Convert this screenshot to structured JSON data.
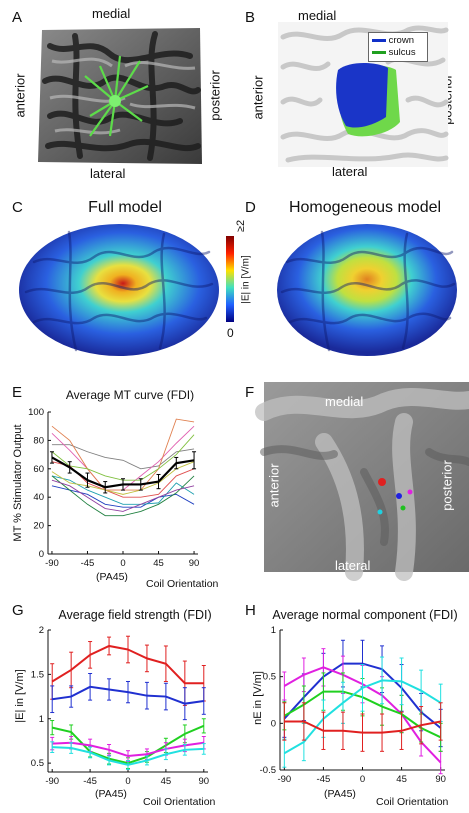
{
  "panel_labels": {
    "A": "A",
    "B": "B",
    "C": "C",
    "D": "D",
    "E": "E",
    "F": "F",
    "G": "G",
    "H": "H"
  },
  "panelA": {
    "top": "medial",
    "bottom": "lateral",
    "left": "anterior",
    "right": "posterior"
  },
  "panelB": {
    "top": "medial",
    "bottom": "lateral",
    "left": "anterior",
    "right": "posterior",
    "legend": [
      {
        "label": "crown",
        "color": "#1030c8"
      },
      {
        "label": "sulcus",
        "color": "#20a020"
      }
    ]
  },
  "panelC": {
    "title": "Full model"
  },
  "panelD": {
    "title": "Homogeneous model"
  },
  "colorbar": {
    "top_label": "≥2",
    "bottom_label": "0",
    "unit_label": "|E| in [V/m]"
  },
  "panelF": {
    "top": "medial",
    "bottom": "lateral",
    "left": "anterior",
    "right": "posterior"
  },
  "chart_data": [
    {
      "id": "E",
      "type": "line",
      "title": "Average MT curve (FDI)",
      "ylabel": "MT   % Stimulator Output",
      "xlabel": "Coil Orientation",
      "x_annotation": "(PA45)",
      "x": [
        -90,
        -67.5,
        -45,
        -22.5,
        0,
        22.5,
        45,
        67.5,
        90
      ],
      "xticks": [
        -90,
        -45,
        0,
        45,
        90
      ],
      "yticks": [
        0,
        20,
        40,
        60,
        80,
        100
      ],
      "xlim": [
        -95,
        95
      ],
      "ylim": [
        0,
        100
      ],
      "mean": {
        "values": [
          68,
          61,
          52,
          47,
          49,
          49,
          51,
          64,
          66
        ],
        "err": [
          4,
          4,
          5,
          4,
          4,
          4,
          5,
          4,
          6
        ],
        "color": "#000000"
      },
      "series": [
        {
          "color": "#808080",
          "values": [
            77,
            77,
            72,
            68,
            66,
            60,
            62,
            72,
            74
          ]
        },
        {
          "color": "#e060b0",
          "values": [
            85,
            73,
            60,
            45,
            45,
            55,
            65,
            78,
            90
          ]
        },
        {
          "color": "#e08050",
          "values": [
            90,
            80,
            60,
            45,
            45,
            45,
            60,
            95,
            93
          ]
        },
        {
          "color": "#80c040",
          "values": [
            72,
            62,
            60,
            55,
            52,
            52,
            60,
            70,
            84
          ]
        },
        {
          "color": "#e05050",
          "values": [
            65,
            62,
            50,
            45,
            40,
            40,
            42,
            55,
            60
          ]
        },
        {
          "color": "#2040c0",
          "values": [
            48,
            45,
            42,
            35,
            33,
            33,
            40,
            42,
            35
          ]
        },
        {
          "color": "#20a0b0",
          "values": [
            55,
            52,
            45,
            40,
            35,
            35,
            36,
            50,
            42
          ]
        },
        {
          "color": "#208040",
          "values": [
            55,
            45,
            35,
            27,
            27,
            30,
            35,
            43,
            55
          ]
        },
        {
          "color": "#9040a0",
          "values": [
            52,
            48,
            40,
            32,
            30,
            35,
            40,
            45,
            48
          ]
        },
        {
          "color": "#c0c040",
          "values": [
            58,
            50,
            48,
            45,
            42,
            45,
            50,
            60,
            65
          ]
        }
      ]
    },
    {
      "id": "G",
      "type": "line",
      "title": "Average field strength (FDI)",
      "ylabel": "|E| in [V/m]",
      "xlabel": "Coil Orientation",
      "x_annotation": "(PA45)",
      "x": [
        -90,
        -67.5,
        -45,
        -22.5,
        0,
        22.5,
        45,
        67.5,
        90
      ],
      "xticks": [
        -90,
        -45,
        0,
        45,
        90
      ],
      "yticks": [
        0.5,
        1,
        1.5,
        2
      ],
      "ytick_labels": [
        "0.5",
        "1",
        "1.5",
        "2"
      ],
      "xlim": [
        -95,
        95
      ],
      "ylim": [
        0.4,
        2.0
      ],
      "series": [
        {
          "color": "#e02020",
          "values": [
            1.42,
            1.55,
            1.72,
            1.82,
            1.78,
            1.68,
            1.62,
            1.4,
            1.4
          ],
          "err": [
            0.2,
            0.2,
            0.15,
            0.1,
            0.15,
            0.15,
            0.2,
            0.25,
            0.2
          ]
        },
        {
          "color": "#2030d0",
          "values": [
            1.22,
            1.25,
            1.36,
            1.33,
            1.3,
            1.26,
            1.25,
            1.17,
            1.2
          ],
          "err": [
            0.15,
            0.12,
            0.15,
            0.12,
            0.12,
            0.15,
            0.15,
            0.18,
            0.15
          ]
        },
        {
          "color": "#20d020",
          "values": [
            0.9,
            0.85,
            0.63,
            0.55,
            0.5,
            0.57,
            0.7,
            0.83,
            0.92
          ],
          "err": [
            0.08,
            0.08,
            0.06,
            0.06,
            0.06,
            0.06,
            0.08,
            0.1,
            0.08
          ]
        },
        {
          "color": "#e020e0",
          "values": [
            0.72,
            0.73,
            0.7,
            0.65,
            0.58,
            0.6,
            0.66,
            0.7,
            0.73
          ],
          "err": [
            0.07,
            0.07,
            0.07,
            0.06,
            0.06,
            0.06,
            0.07,
            0.07,
            0.07
          ]
        },
        {
          "color": "#20e0e0",
          "values": [
            0.68,
            0.67,
            0.62,
            0.53,
            0.48,
            0.53,
            0.6,
            0.65,
            0.66
          ],
          "err": [
            0.06,
            0.06,
            0.06,
            0.05,
            0.05,
            0.05,
            0.06,
            0.06,
            0.06
          ]
        }
      ]
    },
    {
      "id": "H",
      "type": "line",
      "title": "Average normal component (FDI)",
      "ylabel": "nE in [V/m]",
      "xlabel": "Coil Orientation",
      "x_annotation": "(PA45)",
      "x": [
        -90,
        -67.5,
        -45,
        -22.5,
        0,
        22.5,
        45,
        67.5,
        90
      ],
      "xticks": [
        -90,
        -45,
        0,
        45,
        90
      ],
      "yticks": [
        -0.5,
        0,
        0.5,
        1
      ],
      "ytick_labels": [
        "-0.5",
        "0",
        "0.5",
        "1"
      ],
      "xlim": [
        -95,
        95
      ],
      "ylim": [
        -0.5,
        1.0
      ],
      "series": [
        {
          "color": "#2030d0",
          "values": [
            0.05,
            0.28,
            0.5,
            0.64,
            0.64,
            0.58,
            0.38,
            0.12,
            -0.05
          ],
          "err": [
            0.2,
            0.25,
            0.25,
            0.25,
            0.25,
            0.25,
            0.25,
            0.2,
            0.2
          ]
        },
        {
          "color": "#e020e0",
          "values": [
            0.4,
            0.52,
            0.6,
            0.52,
            0.42,
            0.3,
            0.1,
            -0.2,
            -0.42
          ],
          "err": [
            0.15,
            0.18,
            0.2,
            0.2,
            0.2,
            0.2,
            0.2,
            0.15,
            0.12
          ]
        },
        {
          "color": "#20d020",
          "values": [
            0.08,
            0.2,
            0.34,
            0.34,
            0.28,
            0.18,
            0.1,
            -0.05,
            -0.15
          ],
          "err": [
            0.15,
            0.2,
            0.2,
            0.2,
            0.2,
            0.2,
            0.2,
            0.15,
            0.15
          ]
        },
        {
          "color": "#20e0e0",
          "values": [
            -0.32,
            -0.2,
            0.05,
            0.22,
            0.38,
            0.46,
            0.45,
            0.35,
            0.22
          ],
          "err": [
            0.15,
            0.2,
            0.2,
            0.22,
            0.25,
            0.25,
            0.25,
            0.22,
            0.2
          ]
        },
        {
          "color": "#e02020",
          "values": [
            0.02,
            0.02,
            -0.08,
            -0.08,
            -0.1,
            -0.1,
            -0.08,
            -0.02,
            0.02
          ],
          "err": [
            0.2,
            0.2,
            0.2,
            0.2,
            0.2,
            0.2,
            0.2,
            0.2,
            0.2
          ]
        }
      ]
    }
  ]
}
